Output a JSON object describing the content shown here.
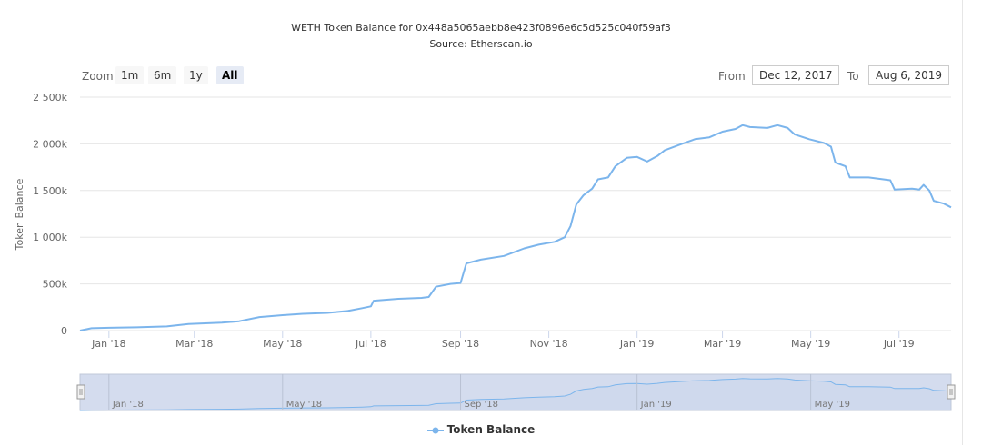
{
  "title": "WETH Token Balance for 0x448a5065aebb8e423f0896e6c5d525c040f59af3",
  "subtitle": "Source: Etherscan.io",
  "range_selector": {
    "zoom_label": "Zoom",
    "buttons": [
      "1m",
      "6m",
      "1y",
      "All"
    ],
    "active": "All",
    "from_label": "From",
    "from_value": "Dec 12, 2017",
    "to_label": "To",
    "to_value": "Aug 6, 2019"
  },
  "legend_label": "Token Balance",
  "colors": {
    "line": "#7cb5ec",
    "navigator_mask": "#ccd6eb",
    "grid": "#e6e6e6"
  },
  "chart_data": {
    "type": "line",
    "title": "WETH Token Balance for 0x448a5065aebb8e423f0896e6c5d525c040f59af3",
    "subtitle": "Source: Etherscan.io",
    "ylabel": "Token Balance",
    "xlabel": "",
    "ylim": [
      0,
      2500000
    ],
    "xlim": [
      "2017-12-12",
      "2019-08-06"
    ],
    "yticks": [
      "0",
      "500k",
      "1 000k",
      "1 500k",
      "2 000k",
      "2 500k"
    ],
    "ytick_values": [
      0,
      500000,
      1000000,
      1500000,
      2000000,
      2500000
    ],
    "xticks": [
      {
        "label": "Jan '18",
        "date": "2018-01-01"
      },
      {
        "label": "Mar '18",
        "date": "2018-03-01"
      },
      {
        "label": "May '18",
        "date": "2018-05-01"
      },
      {
        "label": "Jul '18",
        "date": "2018-07-01"
      },
      {
        "label": "Sep '18",
        "date": "2018-09-01"
      },
      {
        "label": "Nov '18",
        "date": "2018-11-01"
      },
      {
        "label": "Jan '19",
        "date": "2019-01-01"
      },
      {
        "label": "Mar '19",
        "date": "2019-03-01"
      },
      {
        "label": "May '19",
        "date": "2019-05-01"
      },
      {
        "label": "Jul '19",
        "date": "2019-07-01"
      }
    ],
    "navigator_ticks": [
      {
        "label": "Jan '18",
        "date": "2018-01-01"
      },
      {
        "label": "May '18",
        "date": "2018-05-01"
      },
      {
        "label": "Sep '18",
        "date": "2018-09-01"
      },
      {
        "label": "Jan '19",
        "date": "2019-01-01"
      },
      {
        "label": "May '19",
        "date": "2019-05-01"
      }
    ],
    "grid": true,
    "legend": "bottom-center",
    "series": [
      {
        "name": "Token Balance",
        "points": [
          [
            "2017-12-12",
            0
          ],
          [
            "2017-12-20",
            25000
          ],
          [
            "2018-01-01",
            30000
          ],
          [
            "2018-01-20",
            35000
          ],
          [
            "2018-02-10",
            45000
          ],
          [
            "2018-02-25",
            70000
          ],
          [
            "2018-03-20",
            85000
          ],
          [
            "2018-04-01",
            100000
          ],
          [
            "2018-04-15",
            145000
          ],
          [
            "2018-05-01",
            165000
          ],
          [
            "2018-05-15",
            180000
          ],
          [
            "2018-06-01",
            190000
          ],
          [
            "2018-06-15",
            210000
          ],
          [
            "2018-06-25",
            240000
          ],
          [
            "2018-07-01",
            260000
          ],
          [
            "2018-07-03",
            320000
          ],
          [
            "2018-07-20",
            340000
          ],
          [
            "2018-08-05",
            350000
          ],
          [
            "2018-08-10",
            360000
          ],
          [
            "2018-08-15",
            470000
          ],
          [
            "2018-08-25",
            500000
          ],
          [
            "2018-09-01",
            510000
          ],
          [
            "2018-09-05",
            720000
          ],
          [
            "2018-09-15",
            760000
          ],
          [
            "2018-10-01",
            800000
          ],
          [
            "2018-10-15",
            880000
          ],
          [
            "2018-10-25",
            920000
          ],
          [
            "2018-11-05",
            950000
          ],
          [
            "2018-11-12",
            1000000
          ],
          [
            "2018-11-16",
            1120000
          ],
          [
            "2018-11-20",
            1350000
          ],
          [
            "2018-11-25",
            1450000
          ],
          [
            "2018-12-01",
            1520000
          ],
          [
            "2018-12-05",
            1620000
          ],
          [
            "2018-12-12",
            1640000
          ],
          [
            "2018-12-17",
            1760000
          ],
          [
            "2018-12-25",
            1850000
          ],
          [
            "2019-01-01",
            1860000
          ],
          [
            "2019-01-08",
            1810000
          ],
          [
            "2019-01-15",
            1870000
          ],
          [
            "2019-01-20",
            1930000
          ],
          [
            "2019-02-01",
            2000000
          ],
          [
            "2019-02-10",
            2050000
          ],
          [
            "2019-02-20",
            2070000
          ],
          [
            "2019-03-01",
            2130000
          ],
          [
            "2019-03-10",
            2160000
          ],
          [
            "2019-03-15",
            2200000
          ],
          [
            "2019-03-20",
            2180000
          ],
          [
            "2019-04-01",
            2170000
          ],
          [
            "2019-04-08",
            2200000
          ],
          [
            "2019-04-15",
            2170000
          ],
          [
            "2019-04-20",
            2100000
          ],
          [
            "2019-04-30",
            2050000
          ],
          [
            "2019-05-10",
            2010000
          ],
          [
            "2019-05-15",
            1970000
          ],
          [
            "2019-05-18",
            1800000
          ],
          [
            "2019-05-25",
            1760000
          ],
          [
            "2019-05-28",
            1640000
          ],
          [
            "2019-06-10",
            1640000
          ],
          [
            "2019-06-25",
            1610000
          ],
          [
            "2019-06-28",
            1510000
          ],
          [
            "2019-07-10",
            1520000
          ],
          [
            "2019-07-15",
            1510000
          ],
          [
            "2019-07-18",
            1560000
          ],
          [
            "2019-07-22",
            1500000
          ],
          [
            "2019-07-25",
            1390000
          ],
          [
            "2019-08-01",
            1360000
          ],
          [
            "2019-08-06",
            1320000
          ]
        ]
      }
    ]
  }
}
